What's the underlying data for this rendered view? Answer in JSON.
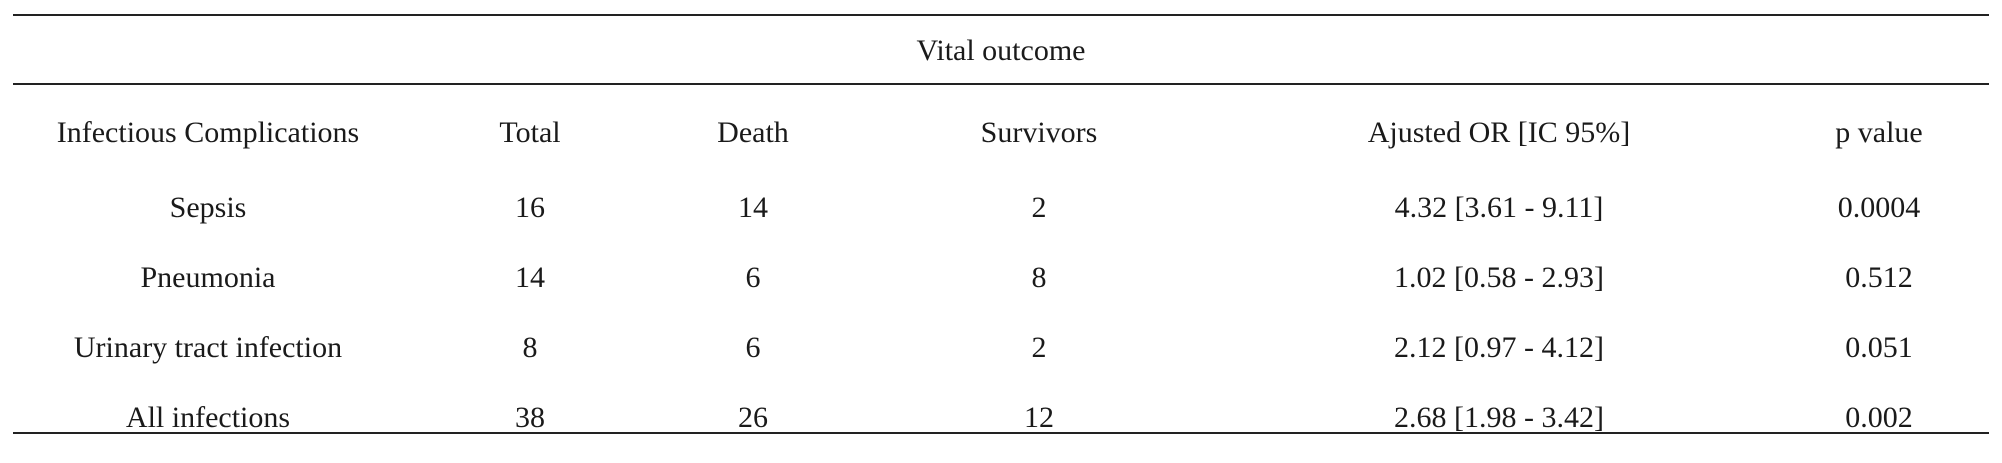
{
  "table": {
    "caption": "Vital outcome",
    "headers": [
      "Infectious Complications",
      "Total",
      "Death",
      "Survivors",
      "Ajusted OR [IC 95%]",
      "p value"
    ],
    "rows": [
      [
        "Sepsis",
        "16",
        "14",
        "2",
        "4.32 [3.61 - 9.11]",
        "0.0004"
      ],
      [
        "Pneumonia",
        "14",
        "6",
        "8",
        "1.02 [0.58 - 2.93]",
        "0.512"
      ],
      [
        "Urinary tract infection",
        "8",
        "6",
        "2",
        "2.12 [0.97 - 4.12]",
        "0.051"
      ],
      [
        "All infections",
        "38",
        "26",
        "12",
        "2.68 [1.98 - 3.42]",
        "0.002"
      ]
    ]
  }
}
